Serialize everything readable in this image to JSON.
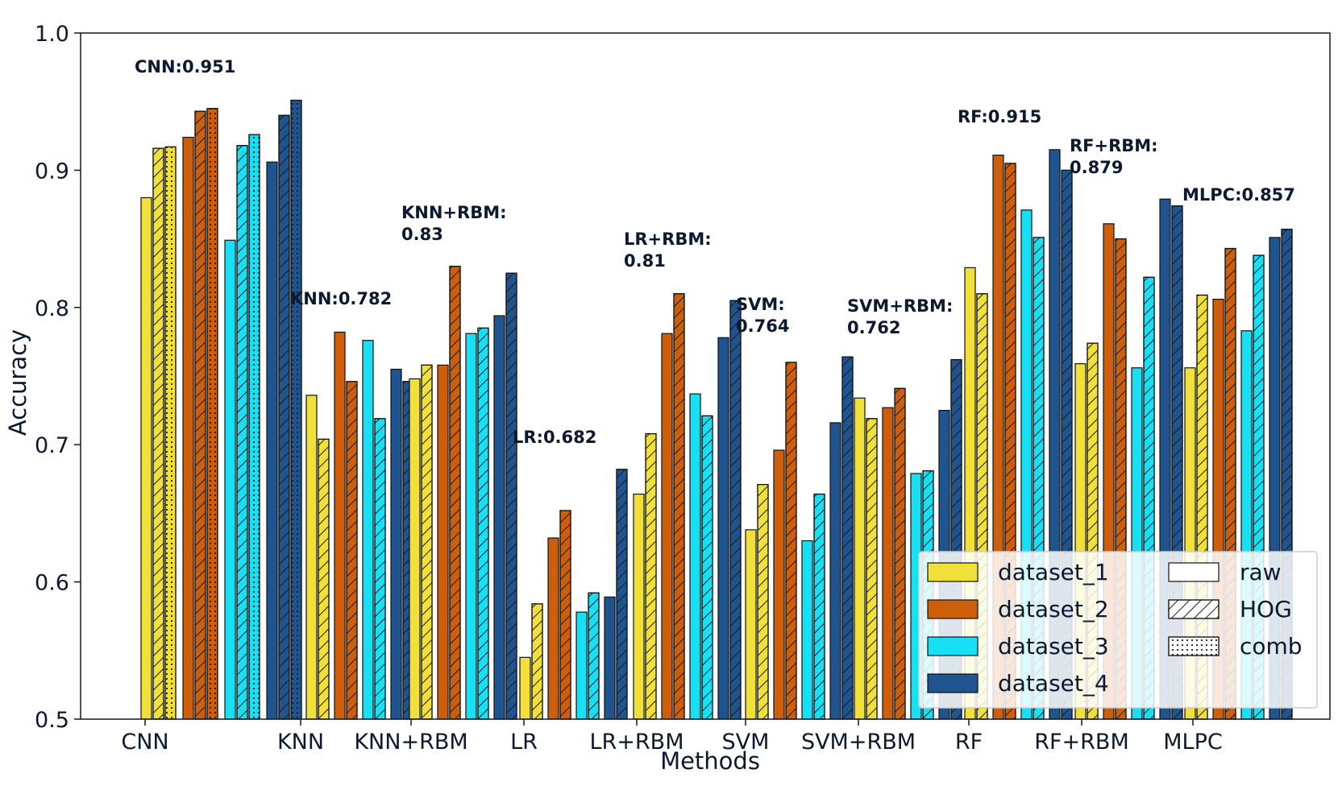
{
  "chart_data": {
    "type": "bar",
    "xlabel": "Methods",
    "ylabel": "Accuracy",
    "ylim": [
      0.5,
      1.0
    ],
    "yticks": [
      "0.5",
      "0.6",
      "0.7",
      "0.8",
      "0.9",
      "1.0"
    ],
    "categories": [
      "CNN",
      "KNN",
      "KNN+RBM",
      "LR",
      "LR+RBM",
      "SVM",
      "SVM+RBM",
      "RF",
      "RF+RBM",
      "MLPC"
    ],
    "datasets": [
      "dataset_1",
      "dataset_2",
      "dataset_3",
      "dataset_4"
    ],
    "features": [
      "raw",
      "HOG",
      "comb"
    ],
    "colors": {
      "dataset_1": "#f2e03a",
      "dataset_2": "#cc5e0c",
      "dataset_3": "#17e0f5",
      "dataset_4": "#20548f"
    },
    "series": [
      {
        "method": "CNN",
        "values": [
          [
            0.88,
            0.916,
            0.917
          ],
          [
            0.924,
            0.943,
            0.945
          ],
          [
            0.849,
            0.918,
            0.926
          ],
          [
            0.906,
            0.94,
            0.951
          ]
        ]
      },
      {
        "method": "KNN",
        "values": [
          [
            0.736,
            0.704
          ],
          [
            0.782,
            0.746
          ],
          [
            0.776,
            0.719
          ],
          [
            0.755,
            0.746
          ]
        ]
      },
      {
        "method": "KNN+RBM",
        "values": [
          [
            0.748,
            0.758
          ],
          [
            0.758,
            0.83
          ],
          [
            0.781,
            0.785
          ],
          [
            0.794,
            0.825
          ]
        ]
      },
      {
        "method": "LR",
        "values": [
          [
            0.545,
            0.584
          ],
          [
            0.632,
            0.652
          ],
          [
            0.578,
            0.592
          ],
          [
            0.589,
            0.682
          ]
        ]
      },
      {
        "method": "LR+RBM",
        "values": [
          [
            0.664,
            0.708
          ],
          [
            0.781,
            0.81
          ],
          [
            0.737,
            0.721
          ],
          [
            0.778,
            0.805
          ]
        ]
      },
      {
        "method": "SVM",
        "values": [
          [
            0.638,
            0.671
          ],
          [
            0.696,
            0.76
          ],
          [
            0.63,
            0.664
          ],
          [
            0.716,
            0.764
          ]
        ]
      },
      {
        "method": "SVM+RBM",
        "values": [
          [
            0.734,
            0.719
          ],
          [
            0.727,
            0.741
          ],
          [
            0.679,
            0.681
          ],
          [
            0.725,
            0.762
          ]
        ]
      },
      {
        "method": "RF",
        "values": [
          [
            0.829,
            0.81
          ],
          [
            0.911,
            0.905
          ],
          [
            0.871,
            0.851
          ],
          [
            0.915,
            0.9
          ]
        ]
      },
      {
        "method": "RF+RBM",
        "values": [
          [
            0.759,
            0.774
          ],
          [
            0.861,
            0.85
          ],
          [
            0.756,
            0.822
          ],
          [
            0.879,
            0.874
          ]
        ]
      },
      {
        "method": "MLPC",
        "values": [
          [
            0.756,
            0.809
          ],
          [
            0.806,
            0.843
          ],
          [
            0.783,
            0.838
          ],
          [
            0.851,
            0.857
          ]
        ]
      }
    ],
    "annotations": [
      {
        "lines": [
          "CNN:0.951"
        ]
      },
      {
        "lines": [
          "KNN:0.782"
        ]
      },
      {
        "lines": [
          "KNN+RBM:",
          "0.83"
        ]
      },
      {
        "lines": [
          "LR:0.682"
        ]
      },
      {
        "lines": [
          "LR+RBM:",
          "0.81"
        ]
      },
      {
        "lines": [
          "SVM:",
          "0.764"
        ]
      },
      {
        "lines": [
          "SVM+RBM:",
          "0.762"
        ]
      },
      {
        "lines": [
          "RF:0.915"
        ]
      },
      {
        "lines": [
          "RF+RBM:",
          "0.879"
        ]
      },
      {
        "lines": [
          "MLPC:0.857"
        ]
      }
    ],
    "legend_placement": "lower-right",
    "grid": false
  }
}
